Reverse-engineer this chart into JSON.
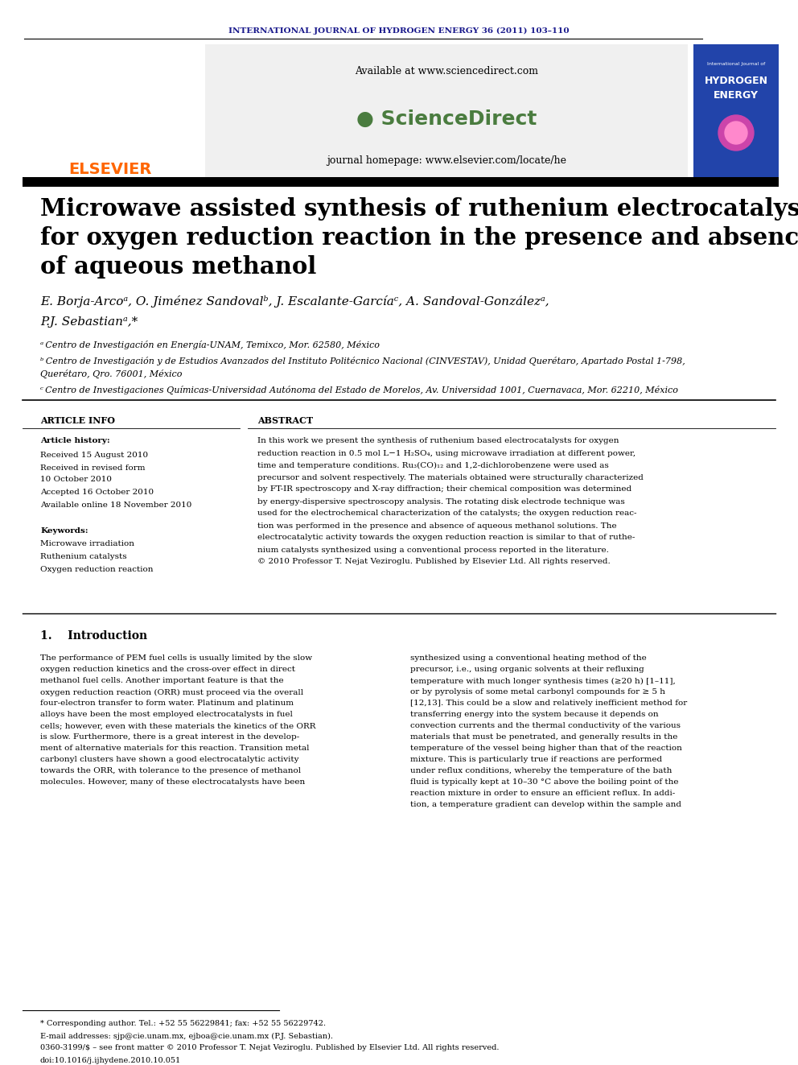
{
  "journal_header": "INTERNATIONAL JOURNAL OF HYDROGEN ENERGY 36 (2011) 103–110",
  "journal_header_color": "#1a1a8c",
  "available_text": "Available at www.sciencedirect.com",
  "sciencedirect_text": "ScienceDirect",
  "journal_homepage": "journal homepage: www.elsevier.com/locate/he",
  "elsevier_text": "ELSEVIER",
  "elsevier_color": "#ff6600",
  "paper_title_line1": "Microwave assisted synthesis of ruthenium electrocatalysts",
  "paper_title_line2": "for oxygen reduction reaction in the presence and absence",
  "paper_title_line3": "of aqueous methanol",
  "authors_line1": "E. Borja-Arcoᵃ, O. Jiménez Sandovalᵇ, J. Escalante-Garcíaᶜ, A. Sandoval-Gonzálezᵃ,",
  "authors_line2": "P.J. Sebastianᵃ,*",
  "affiliation_a": "ᵃ Centro de Investigación en Energía-UNAM, Temixco, Mor. 62580, México",
  "affiliation_b": "ᵇ Centro de Investigación y de Estudios Avanzados del Instituto Politécnico Nacional (CINVESTAV), Unidad Querétaro, Apartado Postal 1-798,",
  "affiliation_b2": "Querétaro, Qro. 76001, México",
  "affiliation_c": "ᶜ Centro de Investigaciones Químicas-Universidad Autónoma del Estado de Morelos, Av. Universidad 1001, Cuernavaca, Mor. 62210, México",
  "article_info_header": "ARTICLE INFO",
  "article_history_header": "Article history:",
  "received_1": "Received 15 August 2010",
  "received_revised": "Received in revised form",
  "received_revised_date": "10 October 2010",
  "accepted": "Accepted 16 October 2010",
  "available_online": "Available online 18 November 2010",
  "keywords_header": "Keywords:",
  "keyword1": "Microwave irradiation",
  "keyword2": "Ruthenium catalysts",
  "keyword3": "Oxygen reduction reaction",
  "abstract_header": "ABSTRACT",
  "abstract_text": "In this work we present the synthesis of ruthenium based electrocatalysts for oxygen\nreduction reaction in 0.5 mol L−1 H₂SO₄, using microwave irradiation at different power,\ntime and temperature conditions. Ru₃(CO)₁₂ and 1,2-dichlorobenzene were used as\nprecursor and solvent respectively. The materials obtained were structurally characterized\nby FT-IR spectroscopy and X-ray diffraction; their chemical composition was determined\nby energy-dispersive spectroscopy analysis. The rotating disk electrode technique was\nused for the electrochemical characterization of the catalysts; the oxygen reduction reac-\ntion was performed in the presence and absence of aqueous methanol solutions. The\nelectrocatalytic activity towards the oxygen reduction reaction is similar to that of ruthe-\nnium catalysts synthesized using a conventional process reported in the literature.\n© 2010 Professor T. Nejat Veziroglu. Published by Elsevier Ltd. All rights reserved.",
  "intro_header": "1.    Introduction",
  "intro_col1": "The performance of PEM fuel cells is usually limited by the slow\noxygen reduction kinetics and the cross-over effect in direct\nmethanol fuel cells. Another important feature is that the\noxygen reduction reaction (ORR) must proceed via the overall\nfour-electron transfer to form water. Platinum and platinum\nalloys have been the most employed electrocatalysts in fuel\ncells; however, even with these materials the kinetics of the ORR\nis slow. Furthermore, there is a great interest in the develop-\nment of alternative materials for this reaction. Transition metal\ncarbonyl clusters have shown a good electrocatalytic activity\ntowards the ORR, with tolerance to the presence of methanol\nmolecules. However, many of these electrocatalysts have been",
  "intro_col2": "synthesized using a conventional heating method of the\nprecursor, i.e., using organic solvents at their refluxing\ntemperature with much longer synthesis times (≥20 h) [1–11],\nor by pyrolysis of some metal carbonyl compounds for ≥ 5 h\n[12,13]. This could be a slow and relatively inefficient method for\ntransferring energy into the system because it depends on\nconvection currents and the thermal conductivity of the various\nmaterials that must be penetrated, and generally results in the\ntemperature of the vessel being higher than that of the reaction\nmixture. This is particularly true if reactions are performed\nunder reflux conditions, whereby the temperature of the bath\nfluid is typically kept at 10–30 °C above the boiling point of the\nreaction mixture in order to ensure an efficient reflux. In addi-\ntion, a temperature gradient can develop within the sample and",
  "footnote_star": "* Corresponding author. Tel.: +52 55 56229841; fax: +52 55 56229742.",
  "footnote_email": "E-mail addresses: sjp@cie.unam.mx, ejboa@cie.unam.mx (P.J. Sebastian).",
  "footnote_issn": "0360-3199/$ – see front matter © 2010 Professor T. Nejat Veziroglu. Published by Elsevier Ltd. All rights reserved.",
  "footnote_doi": "doi:10.1016/j.ijhydene.2010.10.051",
  "bg_color": "#ffffff",
  "header_band_color": "#1a1a8c",
  "sciencedirect_panel_color": "#f0f0f0",
  "title_bold_color": "#000000",
  "body_text_color": "#000000"
}
